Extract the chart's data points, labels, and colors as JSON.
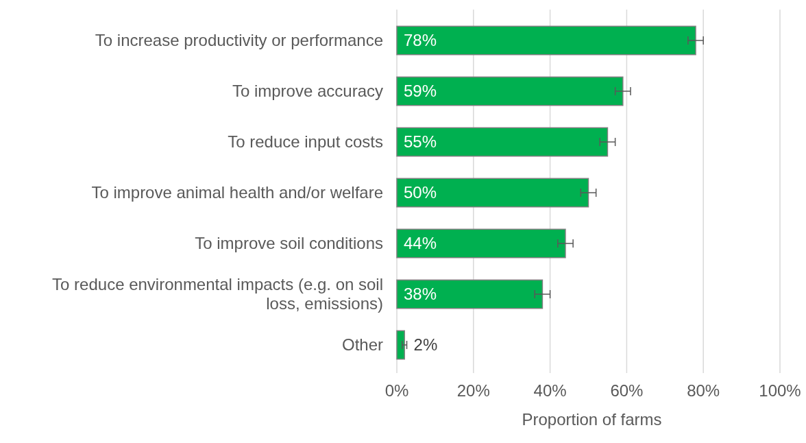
{
  "chart_data": {
    "type": "bar",
    "orientation": "horizontal",
    "xlabel": "Proportion of farms",
    "categories": [
      "To increase productivity or performance",
      "To improve accuracy",
      "To reduce input costs",
      "To improve animal health and/or welfare",
      "To improve soil conditions",
      "To reduce environmental impacts (e.g. on soil loss, emissions)",
      "Other"
    ],
    "values": [
      78,
      59,
      55,
      50,
      44,
      38,
      2
    ],
    "errors": [
      2,
      2,
      2,
      2,
      2,
      2,
      0.6
    ],
    "color": "#00b050",
    "value_labels": [
      "78%",
      "59%",
      "55%",
      "50%",
      "44%",
      "38%",
      "2%"
    ],
    "xlim": [
      0,
      100
    ],
    "xticks": [
      {
        "value": 0,
        "label": "0%"
      },
      {
        "value": 20,
        "label": "20%"
      },
      {
        "value": 40,
        "label": "40%"
      },
      {
        "value": 60,
        "label": "60%"
      },
      {
        "value": 80,
        "label": "80%"
      },
      {
        "value": 100,
        "label": "100%"
      }
    ],
    "grid": "x"
  }
}
